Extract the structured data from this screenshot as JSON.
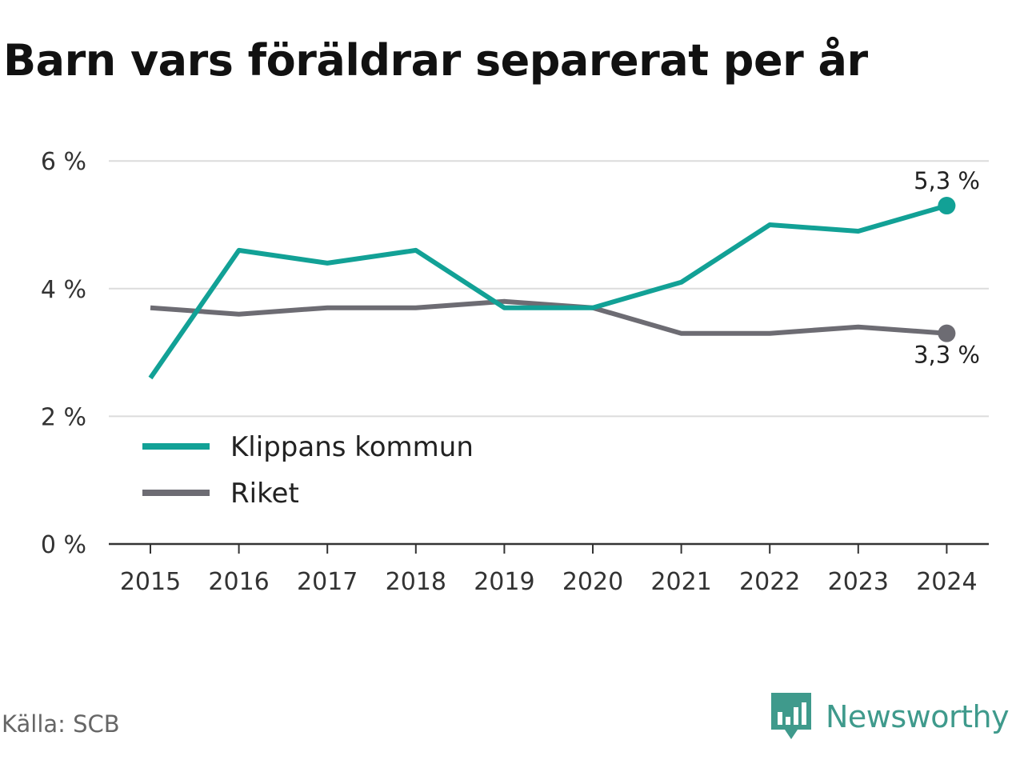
{
  "title": "Barn vars föräldrar separerat per år",
  "source": "Källa: SCB",
  "brand": {
    "name": "Newsworthy",
    "icon": "newsworthy-logo-icon",
    "color": "#3f9a8c"
  },
  "chart_data": {
    "type": "line",
    "title": "Barn vars föräldrar separerat per år",
    "xlabel": "",
    "ylabel": "",
    "x": [
      "2015",
      "2016",
      "2017",
      "2018",
      "2019",
      "2020",
      "2021",
      "2022",
      "2023",
      "2024"
    ],
    "ylim": [
      0,
      6
    ],
    "yticks": [
      0,
      2,
      4,
      6
    ],
    "ytick_labels": [
      "0 %",
      "2 %",
      "4 %",
      "6 %"
    ],
    "grid": true,
    "legend_position": "lower-left",
    "series": [
      {
        "name": "Klippans kommun",
        "color": "#12a196",
        "values": [
          2.6,
          4.6,
          4.4,
          4.6,
          3.7,
          3.7,
          4.1,
          5.0,
          4.9,
          5.3
        ],
        "end_label": "5,3 %"
      },
      {
        "name": "Riket",
        "color": "#6d6c73",
        "values": [
          3.7,
          3.6,
          3.7,
          3.7,
          3.8,
          3.7,
          3.3,
          3.3,
          3.4,
          3.3
        ],
        "end_label": "3,3 %"
      }
    ]
  }
}
